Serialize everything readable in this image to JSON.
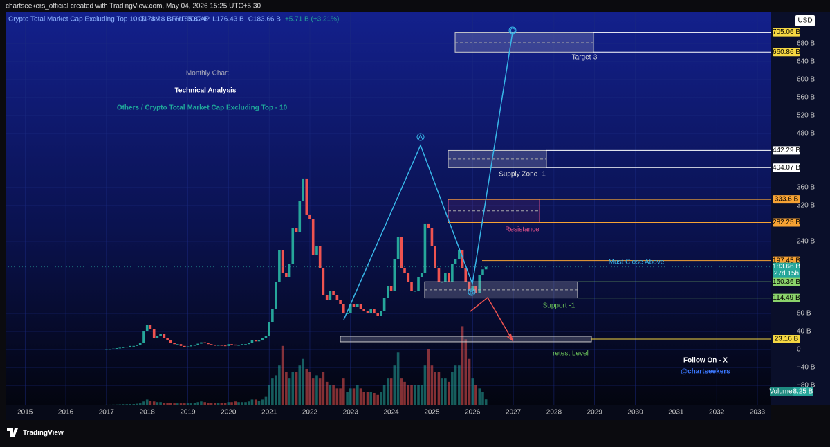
{
  "chart_data": {
    "type": "candlestick",
    "attribution": "chartseekers_official created with TradingView.com, May 04, 2026 15:25 UTC+5:30",
    "symbol": "Crypto Total Market Cap Excluding Top 10, $ · 1M · CRYPTOCAP",
    "ohlc_labels": [
      "O178.28 B",
      "H185.82 B",
      "L176.43 B",
      "C183.66 B",
      "+5.71 B (+3.21%)"
    ],
    "currency": "USD",
    "subtitle": "Monthly Chart",
    "heading": "Technical Analysis",
    "title": "Others / Crypto Total Market Cap Excluding Top - 10",
    "annotations": {
      "wave_a": "A",
      "wave_b": "B",
      "wave_c": "C",
      "target": "Target-3",
      "supply": "Supply Zone- 1",
      "resistance": "Resistance",
      "must_close": "Must Close Above",
      "support": "Support -1",
      "retest": "retest Level",
      "follow": "Follow On - X",
      "handle": "@chartseekers"
    },
    "brand": "TradingView",
    "up_color": "#26a69a",
    "down_color": "#ef5350",
    "xlim": [
      2014.52,
      2033.34
    ],
    "xticks": [
      2015,
      2016,
      2017,
      2018,
      2019,
      2020,
      2021,
      2022,
      2023,
      2024,
      2025,
      2026,
      2027,
      2028,
      2029,
      2030,
      2031,
      2032,
      2033
    ],
    "ylim": [
      -123,
      749
    ],
    "yticks": [
      {
        "value": 680,
        "label": "680 B"
      },
      {
        "value": 640,
        "label": "640 B"
      },
      {
        "value": 600,
        "label": "600 B"
      },
      {
        "value": 560,
        "label": "560 B"
      },
      {
        "value": 520,
        "label": "520 B"
      },
      {
        "value": 480,
        "label": "480 B"
      },
      {
        "value": 360,
        "label": "360 B"
      },
      {
        "value": 320,
        "label": "320 B"
      },
      {
        "value": 240,
        "label": "240 B"
      },
      {
        "value": 80,
        "label": "80 B"
      },
      {
        "value": 40,
        "label": "40 B"
      },
      0,
      {
        "value": -40,
        "label": "−40 B"
      },
      {
        "value": -80,
        "label": "−80 B"
      }
    ],
    "levels": [
      {
        "value": 705.06,
        "label": "705.06 B",
        "color": "#f5d742"
      },
      {
        "value": 660.86,
        "label": "660.86 B",
        "color": "#f5d742"
      },
      {
        "value": 442.29,
        "label": "442.29 B",
        "color": "#ffffff"
      },
      {
        "value": 404.07,
        "label": "404.07 B",
        "color": "#ffffff"
      },
      {
        "value": 333.6,
        "label": "333.6 B",
        "color": "#f7a334"
      },
      {
        "value": 282.25,
        "label": "282.25 B",
        "color": "#f7a334"
      },
      {
        "value": 197.45,
        "label": "197.45 B",
        "color": "#f7a334"
      },
      {
        "value": 150.36,
        "label": "150.36 B",
        "color": "#8bd36b"
      },
      {
        "value": 114.49,
        "label": "114.49 B",
        "color": "#8bd36b"
      },
      {
        "value": 23.16,
        "label": "23.16 B",
        "color": "#f5d742"
      }
    ],
    "last_price": {
      "value": 183.66,
      "label": "183.66 B",
      "countdown": "27d 15h"
    },
    "volume_label": "Volume",
    "volume_last": {
      "value": 8.25,
      "label": "8.25 B"
    },
    "volume_lim": [
      0,
      150
    ],
    "x": [
      2017,
      2017.08,
      2017.17,
      2017.25,
      2017.33,
      2017.42,
      2017.5,
      2017.58,
      2017.67,
      2017.75,
      2017.83,
      2017.92,
      2018,
      2018.08,
      2018.17,
      2018.25,
      2018.33,
      2018.42,
      2018.5,
      2018.58,
      2018.67,
      2018.75,
      2018.83,
      2018.92,
      2019,
      2019.08,
      2019.17,
      2019.25,
      2019.33,
      2019.42,
      2019.5,
      2019.58,
      2019.67,
      2019.75,
      2019.83,
      2019.92,
      2020,
      2020.08,
      2020.17,
      2020.25,
      2020.33,
      2020.42,
      2020.5,
      2020.58,
      2020.67,
      2020.75,
      2020.83,
      2020.92,
      2021,
      2021.08,
      2021.17,
      2021.25,
      2021.33,
      2021.42,
      2021.5,
      2021.58,
      2021.67,
      2021.75,
      2021.83,
      2021.92,
      2022,
      2022.08,
      2022.17,
      2022.25,
      2022.33,
      2022.42,
      2022.5,
      2022.58,
      2022.67,
      2022.75,
      2022.83,
      2022.92,
      2023,
      2023.08,
      2023.17,
      2023.25,
      2023.33,
      2023.42,
      2023.5,
      2023.58,
      2023.67,
      2023.75,
      2023.83,
      2023.92,
      2024,
      2024.08,
      2024.17,
      2024.25,
      2024.33,
      2024.42,
      2024.5,
      2024.58,
      2024.67,
      2024.75,
      2024.83,
      2024.92,
      2025,
      2025.08,
      2025.17,
      2025.25,
      2025.33,
      2025.42,
      2025.5,
      2025.58,
      2025.67,
      2025.75,
      2025.83,
      2025.92,
      2026,
      2026.08,
      2026.17,
      2026.25,
      2026.33
    ],
    "close": [
      1,
      1,
      2,
      3,
      4,
      5,
      6,
      8,
      8,
      10,
      15,
      40,
      55,
      45,
      25,
      30,
      35,
      25,
      20,
      15,
      12,
      12,
      8,
      6,
      7,
      9,
      10,
      13,
      16,
      14,
      12,
      10,
      9,
      10,
      9,
      8,
      12,
      11,
      9,
      10,
      12,
      12,
      15,
      20,
      18,
      20,
      25,
      30,
      60,
      90,
      150,
      220,
      170,
      160,
      190,
      270,
      260,
      330,
      380,
      300,
      290,
      210,
      230,
      180,
      120,
      110,
      130,
      120,
      110,
      100,
      80,
      80,
      100,
      95,
      100,
      90,
      85,
      80,
      90,
      80,
      75,
      85,
      115,
      140,
      130,
      200,
      250,
      180,
      170,
      150,
      130,
      130,
      160,
      170,
      280,
      270,
      230,
      180,
      150,
      150,
      170,
      150,
      190,
      200,
      220,
      180,
      150,
      130,
      140,
      125,
      165,
      178,
      183.66
    ],
    "volume": [
      0.1,
      0.1,
      0.2,
      0.3,
      0.5,
      0.8,
      0.8,
      1,
      1,
      1.5,
      2,
      5,
      8,
      6,
      5,
      4,
      4,
      3,
      3,
      3,
      2,
      2,
      2,
      2,
      2,
      2,
      3,
      4,
      5,
      4,
      3,
      3,
      3,
      3,
      3,
      3,
      4,
      4,
      5,
      4,
      4,
      4,
      5,
      8,
      8,
      6,
      8,
      12,
      30,
      40,
      45,
      60,
      90,
      50,
      40,
      50,
      50,
      60,
      70,
      55,
      50,
      40,
      45,
      40,
      50,
      35,
      30,
      30,
      25,
      25,
      40,
      20,
      25,
      25,
      30,
      25,
      20,
      20,
      20,
      18,
      15,
      20,
      30,
      40,
      40,
      60,
      80,
      40,
      35,
      30,
      30,
      30,
      30,
      30,
      60,
      85,
      60,
      50,
      50,
      40,
      40,
      35,
      50,
      60,
      60,
      120,
      100,
      70,
      40,
      30,
      25,
      20,
      8.25
    ]
  }
}
